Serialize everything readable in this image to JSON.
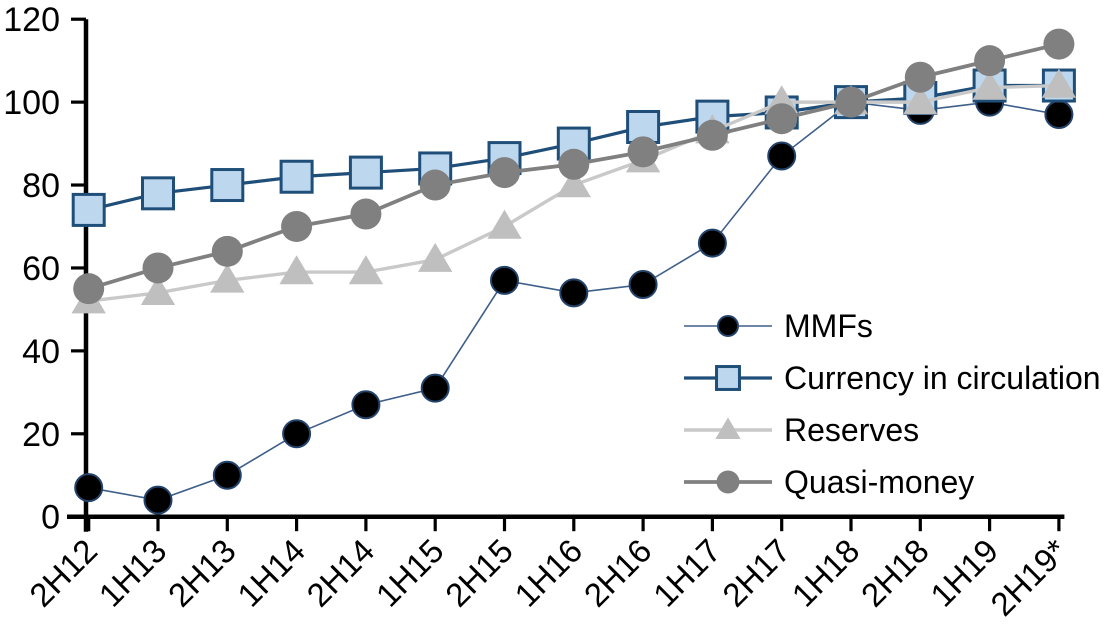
{
  "page": {
    "background": "#FFFFFF"
  },
  "axis": {
    "color": "#000000",
    "ytick_labels": [
      "0",
      "20",
      "40",
      "60",
      "80",
      "100",
      "120"
    ]
  },
  "chart_data": {
    "type": "line",
    "title": "",
    "xlabel": "",
    "ylabel": "",
    "grid": false,
    "legend_position": "center-right",
    "ylim": [
      0,
      120
    ],
    "ytick_step": 20,
    "categories": [
      "2H12",
      "1H13",
      "2H13",
      "1H14",
      "2H14",
      "1H15",
      "2H15",
      "1H16",
      "2H16",
      "1H17",
      "2H17",
      "1H18",
      "2H18",
      "1H19",
      "2H19*"
    ],
    "series": [
      {
        "name": "MMFs",
        "marker": "circle",
        "marker_fill": "#000000",
        "marker_stroke": "#24436B",
        "marker_stroke_width": 2,
        "marker_d": 27,
        "line_color": "#3E5F8A",
        "line_width": 1.6,
        "values": [
          7,
          4,
          10,
          20,
          27,
          31,
          57,
          54,
          56,
          66,
          87,
          100,
          98,
          100,
          97
        ]
      },
      {
        "name": "Currency in circulation",
        "marker": "square",
        "marker_fill": "#BDD7EE",
        "marker_stroke": "#1F4E79",
        "marker_stroke_width": 3,
        "marker_d": 31,
        "line_color": "#1F4E79",
        "line_width": 3.2,
        "values": [
          74,
          78,
          80,
          82,
          83,
          84,
          86.5,
          90,
          94,
          96.5,
          97.5,
          100,
          101,
          104,
          104
        ]
      },
      {
        "name": "Reserves",
        "marker": "triangle",
        "marker_fill": "#BFBFBF",
        "marker_stroke": "#BFBFBF",
        "marker_stroke_width": 0,
        "marker_d": 33,
        "line_color": "#C9C9C9",
        "line_width": 3.4,
        "values": [
          52,
          54,
          57,
          59,
          59,
          62,
          70,
          80,
          86,
          93,
          100,
          100,
          100,
          103.5,
          104
        ]
      },
      {
        "name": "Quasi-money",
        "marker": "circle",
        "marker_fill": "#808080",
        "marker_stroke": "#808080",
        "marker_stroke_width": 0,
        "marker_d": 31,
        "line_color": "#808080",
        "line_width": 3.8,
        "values": [
          55,
          60,
          64,
          70,
          73,
          80,
          83,
          85,
          88,
          92,
          96,
          100,
          106,
          110,
          114
        ]
      }
    ]
  }
}
